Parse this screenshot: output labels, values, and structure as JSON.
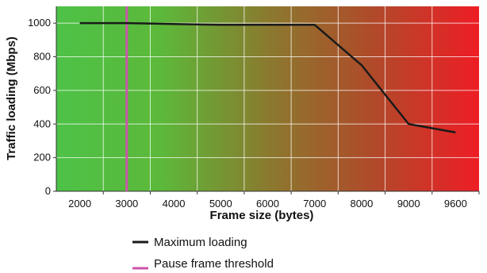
{
  "chart_data": {
    "type": "line",
    "xlabel": "Frame size (bytes)",
    "ylabel": "Traffic loading (Mbps)",
    "categories": [
      "2000",
      "3000",
      "4000",
      "5000",
      "6000",
      "7000",
      "8000",
      "9000",
      "9600"
    ],
    "ylim": [
      0,
      1100
    ],
    "yticks": [
      0,
      200,
      400,
      600,
      800,
      1000
    ],
    "grid": true,
    "background": "gradient green to red",
    "series": [
      {
        "name": "Maximum loading",
        "color": "#1a1a1a",
        "values": [
          1000,
          1000,
          995,
          990,
          990,
          990,
          750,
          400,
          350
        ]
      },
      {
        "name": "Pause frame threshold",
        "color": "#cc55aa",
        "type": "vertical-line",
        "x": "3000"
      }
    ],
    "legend_position": "bottom"
  }
}
